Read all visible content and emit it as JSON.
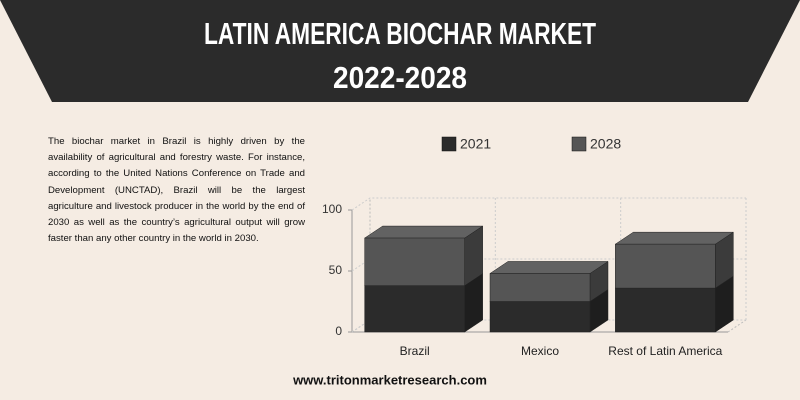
{
  "header": {
    "title_lines": [
      "LATIN AMERICA BIOCHAR MARKET",
      "2022-2028"
    ]
  },
  "description": "The biochar market in Brazil is highly driven by the availability of agricultural and forestry waste. For instance, according to the United Nations Conference on Trade and Development (UNCTAD), Brazil will be the largest agriculture and livestock producer in the world by the end of 2030 as well as the country’s agricultural output will grow faster than any other country in the world in 2030.",
  "chart_data": {
    "type": "bar",
    "stacked": true,
    "categories": [
      "Brazil",
      "Mexico",
      "Rest of Latin America"
    ],
    "series": [
      {
        "name": "2021",
        "color": "#2b2b2b",
        "values": [
          38,
          25,
          36
        ]
      },
      {
        "name": "2028",
        "color": "#555555",
        "values": [
          39,
          23,
          36
        ]
      }
    ],
    "ylim": [
      0,
      100
    ],
    "yticks": [
      0,
      50,
      100
    ],
    "grid": true
  },
  "footer": "www.tritonmarketresearch.com"
}
